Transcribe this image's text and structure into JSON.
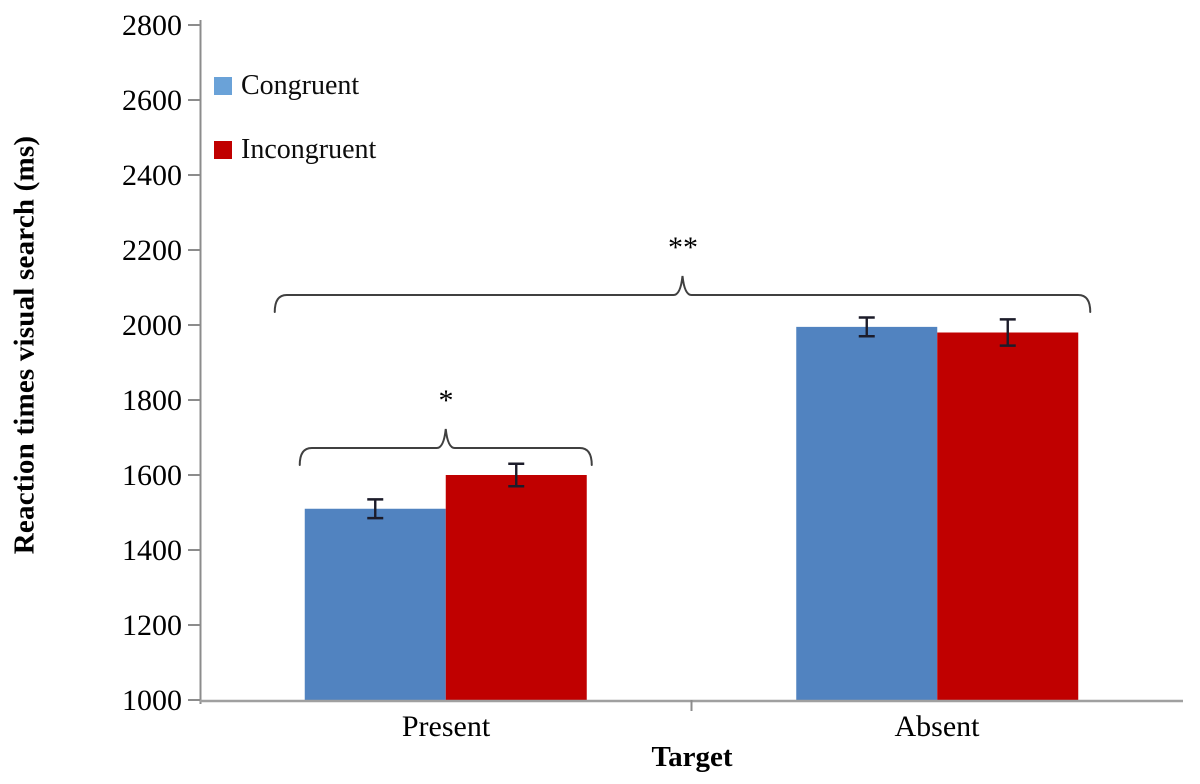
{
  "chart_data": {
    "type": "bar",
    "title": "",
    "ylabel": "Reaction times visual search (ms)",
    "xlabel": "Target",
    "categories": [
      "Present",
      "Absent"
    ],
    "series": [
      {
        "name": "Congruent",
        "color": "#5183C0",
        "legend_color": "#6AA2D8",
        "values": [
          1510,
          1995
        ],
        "errors": [
          25,
          25
        ]
      },
      {
        "name": "Incongruent",
        "color": "#C00000",
        "legend_color": "#C00000",
        "values": [
          1600,
          1980
        ],
        "errors": [
          30,
          35
        ]
      }
    ],
    "ylim": [
      1000,
      2800
    ],
    "ytick_step": 200,
    "yticks": [
      1000,
      1200,
      1400,
      1600,
      1800,
      2000,
      2200,
      2400,
      2600,
      2800
    ],
    "grid": false,
    "legend_position": "top-left-inside",
    "significance": [
      {
        "label": "*",
        "spans": "Present: Congruent vs Incongruent"
      },
      {
        "label": "**",
        "spans": "Present vs Absent"
      }
    ],
    "axis_color": "#8c8c8c",
    "baseline_color": "#a0a0a0",
    "error_bar_color": "#1c1c2a",
    "brace_color": "#404040"
  }
}
